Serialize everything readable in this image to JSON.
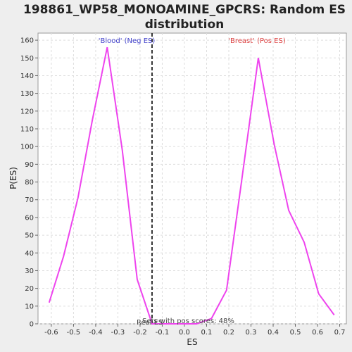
{
  "chart_data": {
    "type": "line",
    "title_line1": "198861_WP58_MONOAMINE_GPCRS: Random ES",
    "title_line2": "distribution",
    "xlabel": "ES",
    "ylabel": "P(ES)",
    "xlim": [
      -0.66,
      0.73
    ],
    "ylim": [
      0,
      164
    ],
    "x_ticks": [
      -0.6,
      -0.5,
      -0.4,
      -0.3,
      -0.2,
      -0.1,
      0.0,
      0.1,
      0.2,
      0.3,
      0.4,
      0.5,
      0.6,
      0.7
    ],
    "x_tick_labels": [
      "-0.6",
      "-0.5",
      "-0.4",
      "-0.3",
      "-0.2",
      "-0.1",
      "0.0",
      "0.1",
      "0.2",
      "0.3",
      "0.4",
      "0.5",
      "0.6",
      "0.7"
    ],
    "y_ticks": [
      0,
      10,
      20,
      30,
      40,
      50,
      60,
      70,
      80,
      90,
      100,
      110,
      120,
      130,
      140,
      150,
      160
    ],
    "y_tick_labels": [
      "0",
      "10",
      "20",
      "30",
      "40",
      "50",
      "60",
      "70",
      "80",
      "90",
      "100",
      "110",
      "120",
      "130",
      "140",
      "150",
      "160"
    ],
    "grid": true,
    "series": [
      {
        "color": "#ee44ee",
        "x": [
          -0.61,
          -0.545,
          -0.48,
          -0.415,
          -0.348,
          -0.28,
          -0.213,
          -0.146,
          -0.079,
          -0.012,
          0.055,
          0.122,
          0.19,
          0.257,
          0.333,
          0.405,
          0.47,
          0.54,
          0.605,
          0.675
        ],
        "y": [
          12,
          38,
          71,
          115,
          156,
          98,
          25,
          0,
          0,
          0,
          0,
          3,
          19,
          80,
          150,
          101,
          64,
          46,
          17,
          5
        ]
      }
    ],
    "marker_line": {
      "x": -0.146,
      "style": "dashed",
      "color": "#333333"
    },
    "annotations": {
      "neg": {
        "text": "'Blood' (Neg ES)",
        "color": "#4444cc"
      },
      "pos": {
        "text": "'Breast' (Pos ES)",
        "color": "#dd4444"
      },
      "real_es": "Real ES",
      "sets_pos": "Sets with pos scores: 48%"
    }
  }
}
